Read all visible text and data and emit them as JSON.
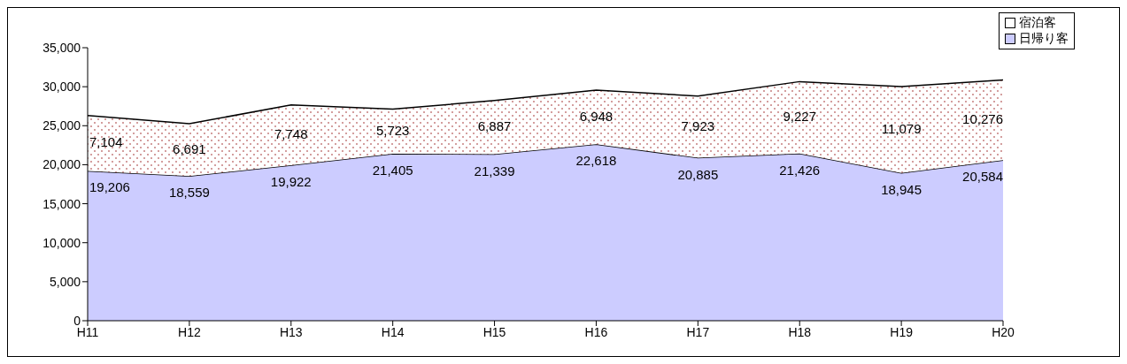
{
  "chart_data": {
    "type": "area",
    "stacked": true,
    "categories": [
      "H11",
      "H12",
      "H13",
      "H14",
      "H15",
      "H16",
      "H17",
      "H18",
      "H19",
      "H20"
    ],
    "series": [
      {
        "name": "日帰り客",
        "color": "#ccccff",
        "values": [
          19206,
          18559,
          19922,
          21405,
          21339,
          22618,
          20885,
          21426,
          18945,
          20584
        ],
        "value_labels": [
          "19,206",
          "18,559",
          "19,922",
          "21,405",
          "21,339",
          "22,618",
          "20,885",
          "21,426",
          "18,945",
          "20,584"
        ]
      },
      {
        "name": "宿泊客",
        "color": "#ffffff",
        "values": [
          7104,
          6691,
          7748,
          5723,
          6887,
          6948,
          7923,
          9227,
          11079,
          10276
        ],
        "value_labels": [
          "7,104",
          "6,691",
          "7,748",
          "5,723",
          "6,887",
          "6,948",
          "7,923",
          "9,227",
          "11,079",
          "10,276"
        ]
      }
    ],
    "ylim": [
      0,
      35000
    ],
    "yticks": [
      {
        "value": 0,
        "label": "0"
      },
      {
        "value": 5000,
        "label": "5,000"
      },
      {
        "value": 10000,
        "label": "10,000"
      },
      {
        "value": 15000,
        "label": "15,000"
      },
      {
        "value": 20000,
        "label": "20,000"
      },
      {
        "value": 25000,
        "label": "25,000"
      },
      {
        "value": 30000,
        "label": "30,000"
      },
      {
        "value": 35000,
        "label": "35,000"
      }
    ],
    "legend": "top right"
  }
}
